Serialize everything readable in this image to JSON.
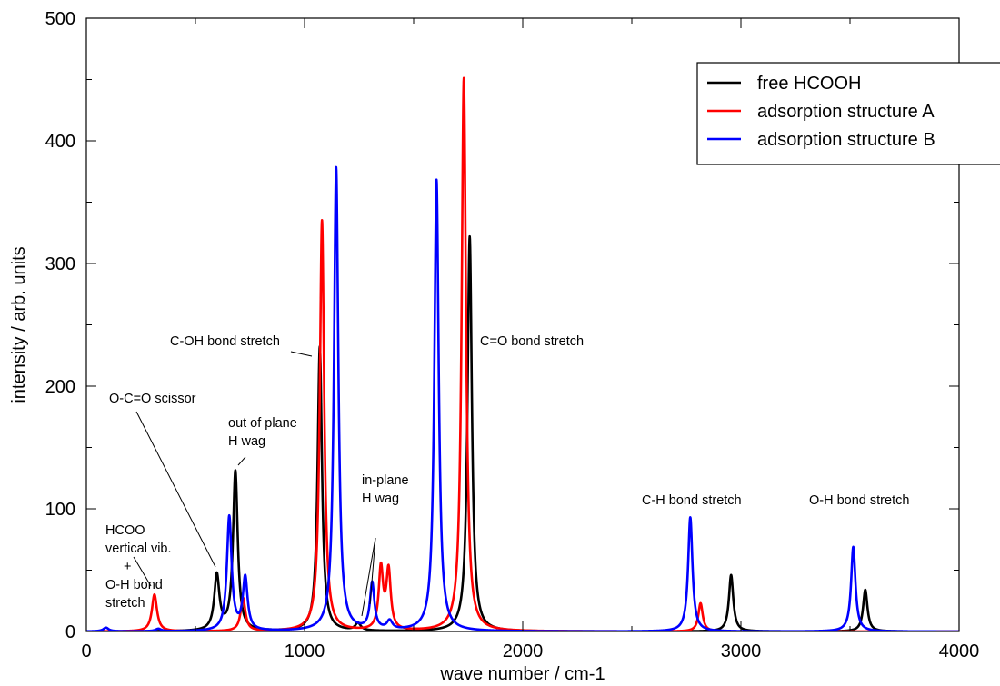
{
  "chart_data": {
    "type": "line",
    "title": "",
    "xlabel": "wave number / cm-1",
    "ylabel": "intensity / arb. units",
    "xlim": [
      0,
      4000
    ],
    "ylim": [
      0,
      500
    ],
    "x_ticks": [
      "0",
      "1000",
      "2000",
      "3000",
      "4000"
    ],
    "y_ticks": [
      "0",
      "100",
      "200",
      "300",
      "400",
      "500"
    ],
    "grid": false,
    "legend_position": "top-right",
    "series": [
      {
        "name": "free HCOOH",
        "color": "#000000",
        "peaks": [
          {
            "x": 598,
            "y": 45,
            "w": 14
          },
          {
            "x": 683,
            "y": 130,
            "w": 13
          },
          {
            "x": 1070,
            "y": 232,
            "w": 12
          },
          {
            "x": 1245,
            "y": 6,
            "w": 15
          },
          {
            "x": 1757,
            "y": 322,
            "w": 12
          },
          {
            "x": 2955,
            "y": 46,
            "w": 12
          },
          {
            "x": 3570,
            "y": 34,
            "w": 12
          }
        ]
      },
      {
        "name": "adsorption structure A",
        "color": "#ff0000",
        "peaks": [
          {
            "x": 312,
            "y": 30,
            "w": 14
          },
          {
            "x": 718,
            "y": 27,
            "w": 13
          },
          {
            "x": 1080,
            "y": 335,
            "w": 12
          },
          {
            "x": 1350,
            "y": 50,
            "w": 12
          },
          {
            "x": 1385,
            "y": 48,
            "w": 12
          },
          {
            "x": 1730,
            "y": 451,
            "w": 12
          },
          {
            "x": 2815,
            "y": 23,
            "w": 12
          }
        ]
      },
      {
        "name": "adsorption structure B",
        "color": "#0000ff",
        "peaks": [
          {
            "x": 90,
            "y": 3,
            "w": 15
          },
          {
            "x": 330,
            "y": 2,
            "w": 15
          },
          {
            "x": 655,
            "y": 93,
            "w": 13
          },
          {
            "x": 728,
            "y": 43,
            "w": 13
          },
          {
            "x": 1145,
            "y": 378,
            "w": 12
          },
          {
            "x": 1310,
            "y": 38,
            "w": 12
          },
          {
            "x": 1390,
            "y": 7,
            "w": 15
          },
          {
            "x": 1605,
            "y": 368,
            "w": 12
          },
          {
            "x": 2768,
            "y": 93,
            "w": 12
          },
          {
            "x": 3515,
            "y": 69,
            "w": 12
          }
        ]
      }
    ],
    "annotations": [
      {
        "lines": [
          "HCOO",
          "vertical vib.",
          "+",
          "O-H bond",
          "stretch"
        ]
      },
      {
        "lines": [
          "O-C=O scissor"
        ]
      },
      {
        "lines": [
          "out of plane",
          "H wag"
        ]
      },
      {
        "lines": [
          "C-OH bond stretch"
        ]
      },
      {
        "lines": [
          "in-plane",
          "H wag"
        ]
      },
      {
        "lines": [
          "C=O bond stretch"
        ]
      },
      {
        "lines": [
          "C-H bond stretch"
        ]
      },
      {
        "lines": [
          "O-H bond stretch"
        ]
      }
    ]
  }
}
